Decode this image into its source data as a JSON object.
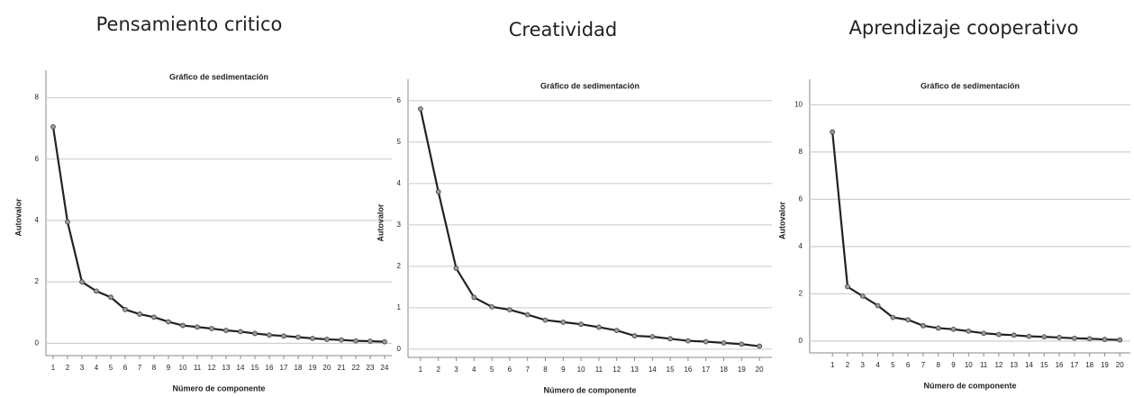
{
  "chart_data": [
    {
      "type": "line",
      "heading": "Pensamiento critico",
      "title": "Gráfico de sedimentación",
      "xlabel": "Número de componente",
      "ylabel": "Autovalor",
      "x": [
        1,
        2,
        3,
        4,
        5,
        6,
        7,
        8,
        9,
        10,
        11,
        12,
        13,
        14,
        15,
        16,
        17,
        18,
        19,
        20,
        21,
        22,
        23,
        24
      ],
      "series": [
        {
          "color": "#222222",
          "values": [
            7.05,
            3.95,
            2.0,
            1.7,
            1.5,
            1.1,
            0.95,
            0.85,
            0.7,
            0.58,
            0.53,
            0.48,
            0.42,
            0.38,
            0.32,
            0.27,
            0.24,
            0.2,
            0.16,
            0.13,
            0.11,
            0.08,
            0.07,
            0.05
          ]
        }
      ],
      "xlim": [
        0.5,
        24.5
      ],
      "ylim": [
        -0.4,
        8.6
      ],
      "yticks": [
        0,
        2,
        4,
        6,
        8
      ],
      "grid": true
    },
    {
      "type": "line",
      "heading": "Creatividad",
      "title": "Gráfico de sedimentación",
      "xlabel": "Número de componente",
      "ylabel": "Autovalor",
      "x": [
        1,
        2,
        3,
        4,
        5,
        6,
        7,
        8,
        9,
        10,
        11,
        12,
        13,
        14,
        15,
        16,
        17,
        18,
        19,
        20
      ],
      "series": [
        {
          "color": "#222222",
          "values": [
            5.8,
            3.8,
            1.95,
            1.25,
            1.02,
            0.95,
            0.83,
            0.7,
            0.65,
            0.6,
            0.53,
            0.45,
            0.32,
            0.3,
            0.25,
            0.2,
            0.18,
            0.15,
            0.12,
            0.07
          ]
        }
      ],
      "xlim": [
        0.3,
        20.7
      ],
      "ylim": [
        -0.2,
        6.3
      ],
      "yticks": [
        0,
        1,
        2,
        3,
        4,
        5,
        6
      ],
      "grid": true
    },
    {
      "type": "line",
      "heading": "Aprendizaje cooperativo",
      "title": "Gráfico de sedimentación",
      "xlabel": "Número de componente",
      "ylabel": "Autovalor",
      "x": [
        1,
        2,
        3,
        4,
        5,
        6,
        7,
        8,
        9,
        10,
        11,
        12,
        13,
        14,
        15,
        16,
        17,
        18,
        19,
        20
      ],
      "series": [
        {
          "color": "#222222",
          "values": [
            8.85,
            2.3,
            1.9,
            1.5,
            1.0,
            0.9,
            0.65,
            0.55,
            0.5,
            0.42,
            0.33,
            0.28,
            0.25,
            0.2,
            0.18,
            0.15,
            0.12,
            0.1,
            0.07,
            0.05
          ]
        }
      ],
      "xlim": [
        -0.5,
        20.7
      ],
      "ylim": [
        -0.5,
        10.7
      ],
      "yticks": [
        0,
        2,
        4,
        6,
        8,
        10
      ],
      "grid": true
    }
  ]
}
